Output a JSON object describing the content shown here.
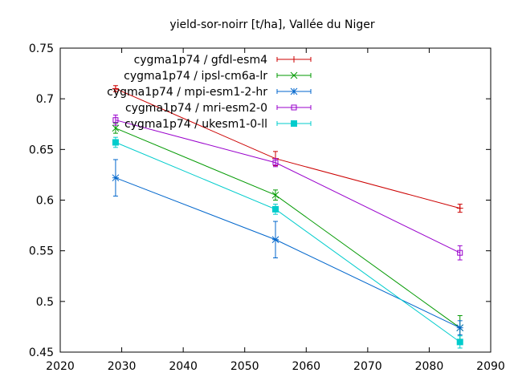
{
  "chart_data": {
    "type": "line",
    "title": "yield-sor-noirr [t/ha], Vallée du Niger",
    "xlabel": "",
    "ylabel": "",
    "xlim": [
      2020,
      2090
    ],
    "ylim": [
      0.45,
      0.75
    ],
    "x_ticks": [
      2020,
      2030,
      2040,
      2050,
      2060,
      2070,
      2080,
      2090
    ],
    "y_ticks": [
      0.45,
      0.5,
      0.55,
      0.6,
      0.65,
      0.7,
      0.75
    ],
    "y_tick_labels": [
      "0.45",
      "0.5",
      "0.55",
      "0.6",
      "0.65",
      "0.7",
      "0.75"
    ],
    "x_tick_labels": [
      "2020",
      "2030",
      "2040",
      "2050",
      "2060",
      "2070",
      "2080",
      "2090"
    ],
    "grid": false,
    "legend_position": "top-right",
    "x": [
      2029,
      2055,
      2085
    ],
    "series": [
      {
        "name": "cygma1p74 / gfdl-esm4",
        "color": "#cc0000",
        "marker": "plus",
        "values": [
          0.71,
          0.641,
          0.592
        ],
        "errors": [
          0.003,
          0.007,
          0.004
        ]
      },
      {
        "name": "cygma1p74 / ipsl-cm6a-lr",
        "color": "#009900",
        "marker": "cross",
        "values": [
          0.671,
          0.605,
          0.474
        ],
        "errors": [
          0.005,
          0.005,
          0.012
        ]
      },
      {
        "name": "cygma1p74 / mpi-esm1-2-hr",
        "color": "#0066cc",
        "marker": "star",
        "values": [
          0.622,
          0.561,
          0.474
        ],
        "errors": [
          0.018,
          0.018,
          0.007
        ]
      },
      {
        "name": "cygma1p74 / mri-esm2-0",
        "color": "#9900cc",
        "marker": "square-open",
        "values": [
          0.679,
          0.637,
          0.548
        ],
        "errors": [
          0.005,
          0.004,
          0.007
        ]
      },
      {
        "name": "cygma1p74 / ukesm1-0-ll",
        "color": "#00cccc",
        "marker": "square-filled",
        "values": [
          0.657,
          0.591,
          0.46
        ],
        "errors": [
          0.005,
          0.005,
          0.006
        ]
      }
    ]
  }
}
